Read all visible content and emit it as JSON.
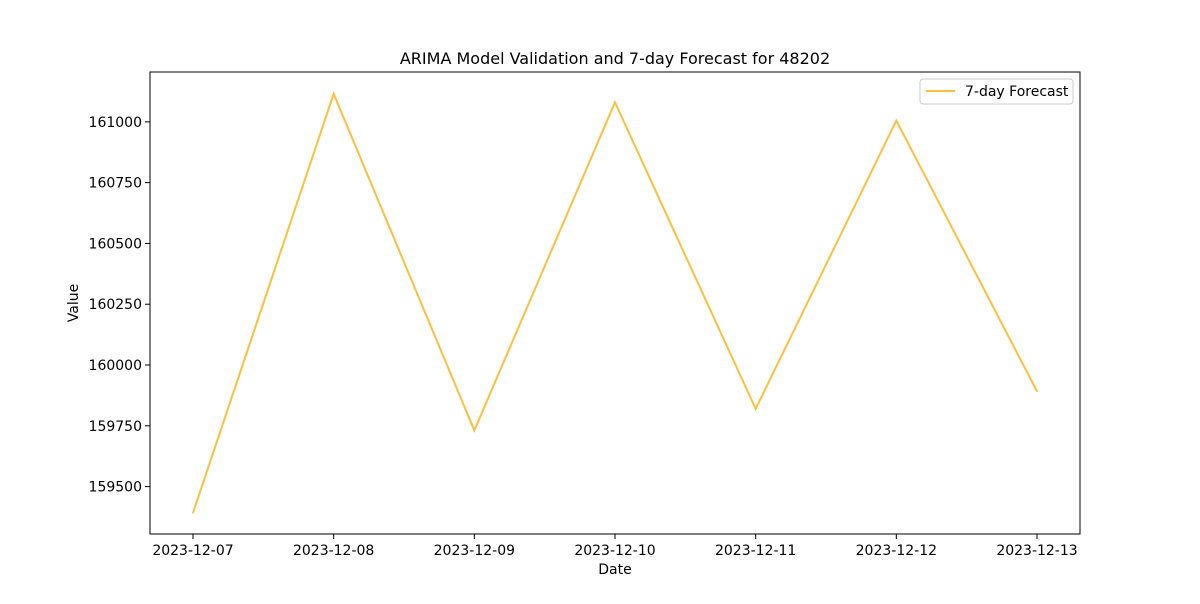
{
  "chart_data": {
    "type": "line",
    "title": "ARIMA Model Validation and 7-day Forecast for 48202",
    "xlabel": "Date",
    "ylabel": "Value",
    "categories": [
      "2023-12-07",
      "2023-12-08",
      "2023-12-09",
      "2023-12-10",
      "2023-12-11",
      "2023-12-12",
      "2023-12-13"
    ],
    "series": [
      {
        "name": "7-day Forecast",
        "color": "#FFBF3F",
        "values": [
          159392,
          161115,
          159731,
          161080,
          159820,
          161005,
          159892
        ]
      }
    ],
    "ylim": [
      159305,
      161205
    ],
    "yticks": [
      159500,
      159750,
      160000,
      160250,
      160500,
      160750,
      161000
    ],
    "ytick_labels": [
      "159500",
      "159750",
      "160000",
      "160250",
      "160500",
      "160750",
      "161000"
    ],
    "legend": "top-right",
    "grid": false
  }
}
